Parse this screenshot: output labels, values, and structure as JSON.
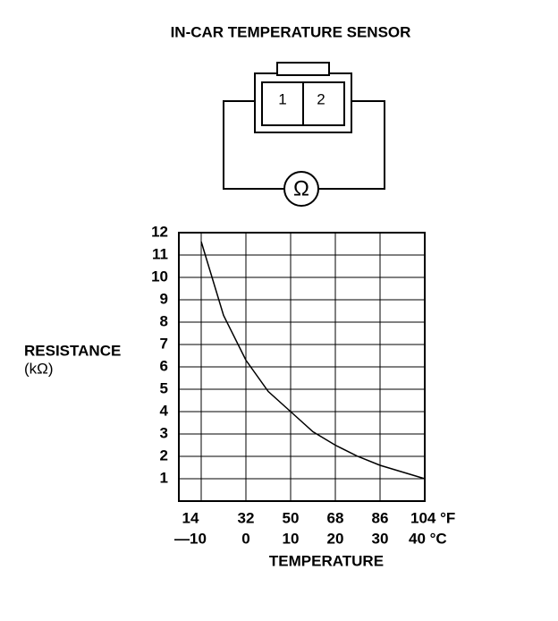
{
  "chart_data": {
    "type": "line",
    "title": "IN-CAR TEMPERATURE SENSOR",
    "x_label": "TEMPERATURE",
    "y_label": [
      "RESISTANCE",
      "(kΩ)"
    ],
    "x": [
      -10,
      -5,
      0,
      5,
      10,
      15,
      20,
      25,
      30,
      35,
      40
    ],
    "series": [
      {
        "color": "#000000",
        "values": [
          11.6,
          8.3,
          6.3,
          4.9,
          4.0,
          3.1,
          2.5,
          2.0,
          1.6,
          1.3,
          1.0
        ]
      }
    ],
    "xlim": [
      -15,
      40
    ],
    "xticks": [
      {
        "value": -10,
        "label": "—10"
      },
      0,
      10,
      20,
      30,
      {
        "value": 40,
        "label": "40 °C"
      }
    ],
    "x2lim": [
      5,
      104
    ],
    "x2ticks": [
      14,
      32,
      50,
      68,
      86,
      {
        "value": 104,
        "label": "104 °F"
      }
    ],
    "ylim": [
      0,
      12
    ],
    "yticks": [
      1,
      2,
      3,
      4,
      5,
      6,
      7,
      8,
      9,
      10,
      11,
      12
    ],
    "grid": true
  },
  "diagram": {
    "pins": [
      "1",
      "2"
    ],
    "meter_symbol": "Ω"
  }
}
